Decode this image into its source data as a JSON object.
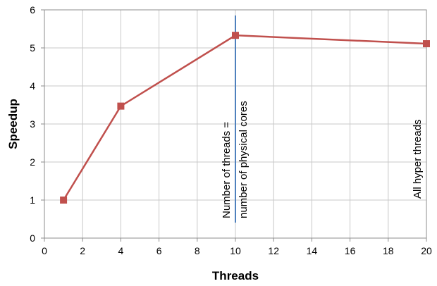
{
  "chart_data": {
    "type": "line",
    "title": "",
    "xlabel": "Threads",
    "ylabel": "Speedup",
    "xlim": [
      0,
      20
    ],
    "ylim": [
      0,
      6
    ],
    "xticks": [
      0,
      2,
      4,
      6,
      8,
      10,
      12,
      14,
      16,
      18,
      20
    ],
    "yticks": [
      0,
      1,
      2,
      3,
      4,
      5,
      6
    ],
    "grid": true,
    "legend": "none",
    "series": [
      {
        "x": [
          1,
          4,
          10,
          20
        ],
        "y": [
          1.0,
          3.47,
          5.33,
          5.11
        ],
        "color": "#c0504d",
        "marker": "square"
      }
    ],
    "vline": {
      "x": 10,
      "color": "#4f81bd"
    },
    "annotations": {
      "physical_cores_line1": "Number of threads =",
      "physical_cores_line2": "number of physical cores",
      "hyper_threads": "All hyper threads"
    }
  }
}
